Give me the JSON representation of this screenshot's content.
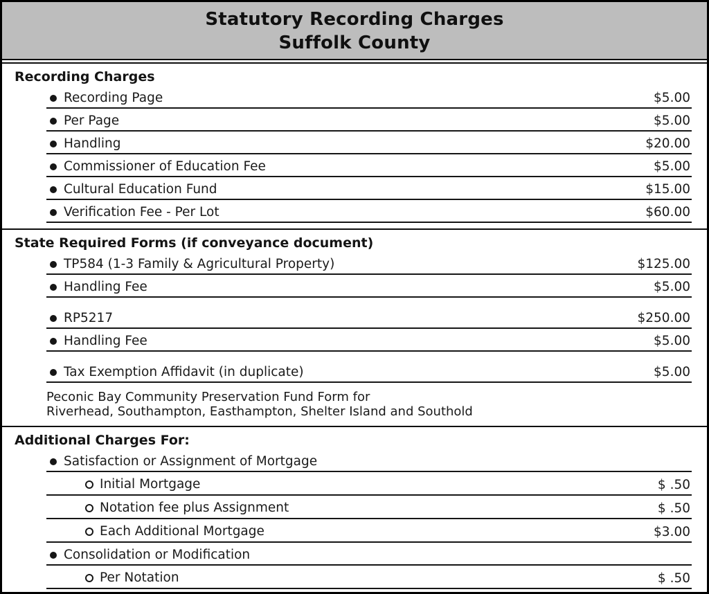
{
  "header": {
    "title_line1": "Statutory Recording Charges",
    "title_line2": "Suffolk County"
  },
  "colors": {
    "header_background": "#bdbdbd",
    "border": "#000000",
    "text": "#1a1a1a"
  },
  "sections": [
    {
      "heading": "Recording Charges",
      "rows": [
        {
          "level": 1,
          "label": "Recording Page",
          "price": "$5.00"
        },
        {
          "level": 1,
          "label": "Per Page",
          "price": "$5.00"
        },
        {
          "level": 1,
          "label": "Handling",
          "price": "$20.00"
        },
        {
          "level": 1,
          "label": "Commissioner of Education Fee",
          "price": "$5.00"
        },
        {
          "level": 1,
          "label": "Cultural Education Fund",
          "price": "$15.00"
        },
        {
          "level": 1,
          "label": "Verification Fee - Per Lot",
          "price": "$60.00"
        }
      ]
    },
    {
      "heading": "State Required Forms (if conveyance document)",
      "rows": [
        {
          "level": 1,
          "label": "TP584 (1-3 Family & Agricultural Property)",
          "price": "$125.00"
        },
        {
          "level": 1,
          "label": "Handling Fee",
          "price": "$5.00"
        },
        {
          "level": 1,
          "label": "RP5217",
          "price": "$250.00",
          "gap_before": true
        },
        {
          "level": 1,
          "label": "Handling Fee",
          "price": "$5.00"
        },
        {
          "level": 1,
          "label": "Tax Exemption Affidavit (in duplicate)",
          "price": "$5.00",
          "gap_before": true
        }
      ],
      "note_lines": [
        "Peconic Bay Community Preservation Fund Form for",
        "Riverhead, Southampton, Easthampton, Shelter Island and Southold"
      ]
    },
    {
      "heading": "Additional Charges For:",
      "rows": [
        {
          "level": 1,
          "label": "Satisfaction or Assignment of Mortgage",
          "price": ""
        },
        {
          "level": 2,
          "label": "Initial Mortgage",
          "price": "$ .50"
        },
        {
          "level": 2,
          "label": "Notation fee plus Assignment",
          "price": "$ .50"
        },
        {
          "level": 2,
          "label": "Each Additional Mortgage",
          "price": "$3.00"
        },
        {
          "level": 1,
          "label": "Consolidation or Modification",
          "price": ""
        },
        {
          "level": 2,
          "label": "Per Notation",
          "price": "$ .50"
        }
      ]
    }
  ]
}
